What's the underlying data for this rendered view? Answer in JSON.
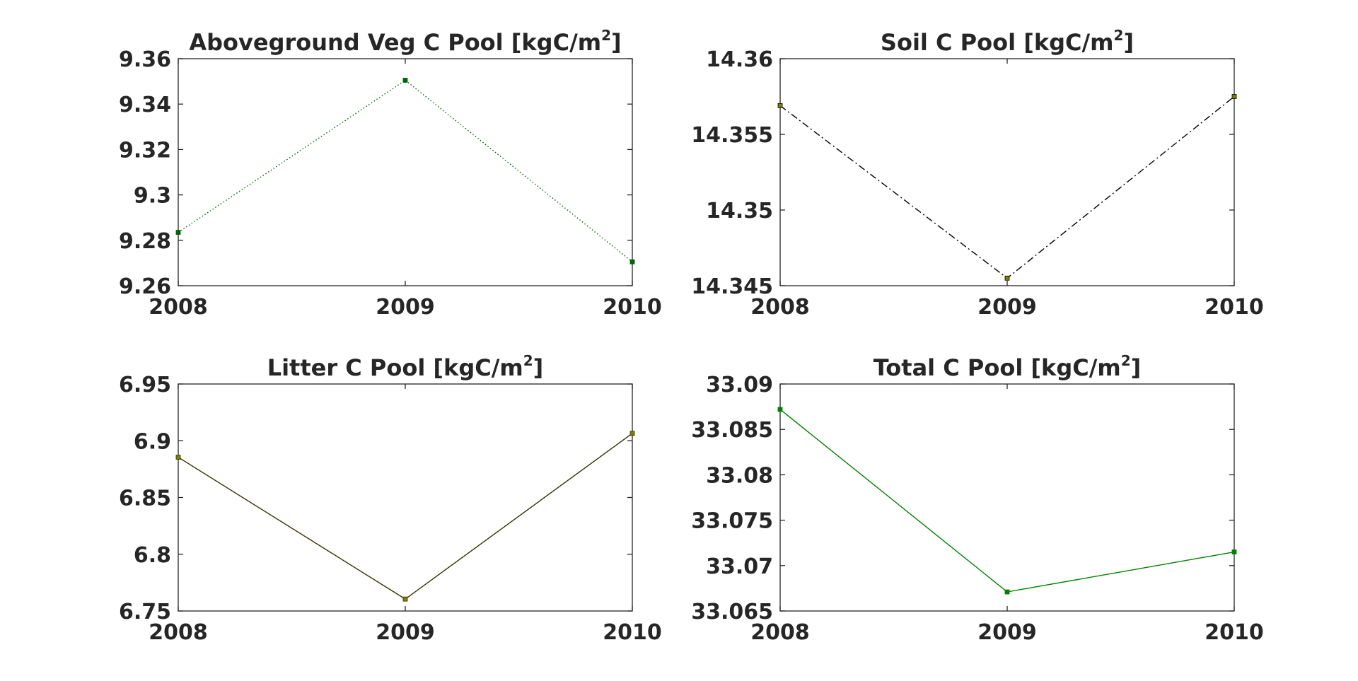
{
  "chart_data": [
    {
      "type": "line",
      "title": "Aboveground Veg C Pool [kgC/m",
      "title_superscript": "2",
      "title_suffix": "]",
      "x": [
        2008,
        2009,
        2010
      ],
      "xticks": [
        "2008",
        "2009",
        "2010"
      ],
      "xlim": [
        2008,
        2010
      ],
      "ylim": [
        9.26,
        9.36
      ],
      "yticks": [
        "9.26",
        "9.28",
        "9.3",
        "9.32",
        "9.34",
        "9.36"
      ],
      "series": [
        {
          "values": [
            9.2835,
            9.3505,
            9.2705
          ],
          "color": "#006400",
          "line_style": "dotted",
          "marker": "square"
        }
      ],
      "grid": false,
      "legend": "none"
    },
    {
      "type": "line",
      "title": "Soil C Pool [kgC/m",
      "title_superscript": "2",
      "title_suffix": "]",
      "x": [
        2008,
        2009,
        2010
      ],
      "xticks": [
        "2008",
        "2009",
        "2010"
      ],
      "xlim": [
        2008,
        2010
      ],
      "ylim": [
        14.345,
        14.36
      ],
      "yticks": [
        "14.345",
        "14.35",
        "14.355",
        "14.36"
      ],
      "series": [
        {
          "values": [
            14.3569,
            14.3455,
            14.3575
          ],
          "color": "#000000",
          "line_style": "dashdot",
          "marker": "square",
          "marker_color": "#808000"
        }
      ],
      "grid": false,
      "legend": "none"
    },
    {
      "type": "line",
      "title": "Litter C Pool [kgC/m",
      "title_superscript": "2",
      "title_suffix": "]",
      "x": [
        2008,
        2009,
        2010
      ],
      "xticks": [
        "2008",
        "2009",
        "2010"
      ],
      "xlim": [
        2008,
        2010
      ],
      "ylim": [
        6.75,
        6.95
      ],
      "yticks": [
        "6.75",
        "6.8",
        "6.85",
        "6.9",
        "6.95"
      ],
      "series": [
        {
          "values": [
            6.8855,
            6.7605,
            6.9065
          ],
          "color": "#333300",
          "line_style": "solid",
          "marker": "square",
          "marker_color": "#808000"
        }
      ],
      "grid": false,
      "legend": "none"
    },
    {
      "type": "line",
      "title": "Total C Pool [kgC/m",
      "title_superscript": "2",
      "title_suffix": "]",
      "x": [
        2008,
        2009,
        2010
      ],
      "xticks": [
        "2008",
        "2009",
        "2010"
      ],
      "xlim": [
        2008,
        2010
      ],
      "ylim": [
        33.065,
        33.09
      ],
      "yticks": [
        "33.065",
        "33.07",
        "33.075",
        "33.08",
        "33.085",
        "33.09"
      ],
      "series": [
        {
          "values": [
            33.0872,
            33.0671,
            33.0715
          ],
          "color": "#008000",
          "line_style": "solid",
          "marker": "square"
        }
      ],
      "grid": false,
      "legend": "none"
    }
  ]
}
